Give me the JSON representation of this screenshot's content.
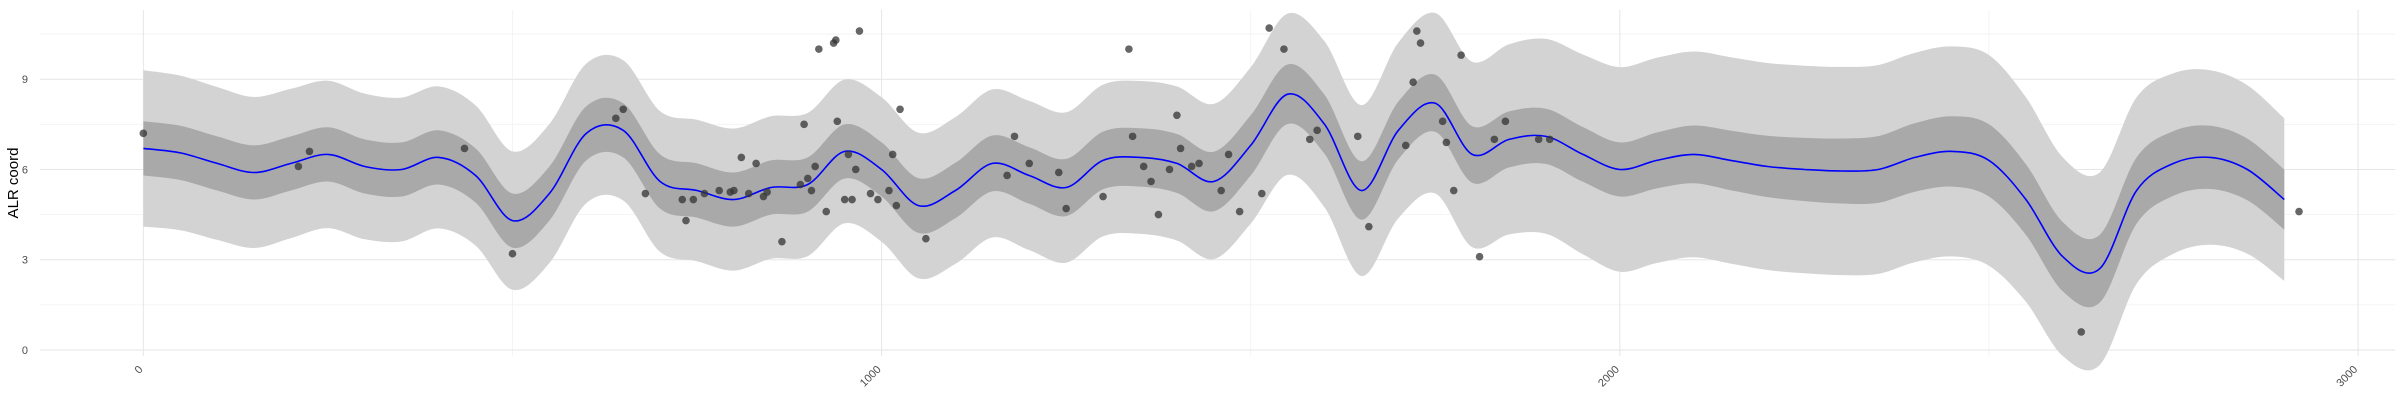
{
  "chart_data": {
    "type": "line",
    "title": "",
    "xlabel": "",
    "ylabel": "ALR coord",
    "xlim": [
      -140,
      3050
    ],
    "ylim": [
      -0.2,
      11.3
    ],
    "x_ticks": [
      0,
      1000,
      2000,
      3000
    ],
    "x_tick_labels": [
      "0",
      "1000",
      "2000",
      "3000"
    ],
    "y_ticks": [
      0,
      3,
      6,
      9
    ],
    "y_tick_labels": [
      "0",
      "3",
      "6",
      "9"
    ],
    "grid": true,
    "legend": "none",
    "colors": {
      "mean_line": "#0000ff",
      "inner_band": "#a9a9a9",
      "outer_band": "#d3d3d3",
      "points": "#333333",
      "grid_major": "#e6e6e6",
      "grid_minor": "#f2f2f2"
    },
    "series": [
      {
        "kind": "mean",
        "x": [
          0,
          50,
          100,
          150,
          200,
          250,
          300,
          350,
          400,
          450,
          500,
          550,
          600,
          650,
          700,
          750,
          800,
          850,
          900,
          950,
          1000,
          1050,
          1100,
          1150,
          1200,
          1250,
          1300,
          1350,
          1400,
          1450,
          1500,
          1550,
          1600,
          1650,
          1700,
          1750,
          1800,
          1850,
          1900,
          1950,
          2000,
          2050,
          2100,
          2150,
          2200,
          2250,
          2300,
          2350,
          2400,
          2450,
          2500,
          2550,
          2600,
          2650,
          2700,
          2750,
          2800,
          2850,
          2900
        ],
        "y": [
          6.7,
          6.55,
          6.2,
          5.9,
          6.2,
          6.5,
          6.1,
          6.0,
          6.4,
          5.8,
          4.3,
          5.2,
          7.2,
          7.3,
          5.6,
          5.3,
          5.0,
          5.4,
          5.5,
          6.6,
          6.0,
          4.8,
          5.3,
          6.2,
          5.8,
          5.4,
          6.3,
          6.4,
          6.2,
          5.6,
          6.8,
          8.5,
          7.5,
          5.3,
          7.3,
          8.2,
          6.5,
          7.0,
          7.1,
          6.5,
          6.0,
          6.3,
          6.5,
          6.3,
          6.1,
          6.0,
          5.95,
          6.0,
          6.4,
          6.6,
          6.3,
          5.0,
          3.1,
          2.7,
          5.3,
          6.2,
          6.4,
          6.0,
          5.0
        ]
      },
      {
        "kind": "inner_band_half_width",
        "x": [
          0,
          500,
          1000,
          1500,
          2000,
          2500,
          2900
        ],
        "y": [
          0.9,
          0.9,
          0.9,
          1.0,
          0.9,
          1.2,
          1.0
        ]
      },
      {
        "kind": "outer_band_half_width",
        "x": [
          0,
          500,
          1000,
          1500,
          2000,
          2500,
          2900
        ],
        "y": [
          2.6,
          2.3,
          2.4,
          2.6,
          3.4,
          3.5,
          2.7
        ]
      }
    ],
    "points": [
      {
        "x": 0,
        "y": 7.2
      },
      {
        "x": 210,
        "y": 6.1
      },
      {
        "x": 225,
        "y": 6.6
      },
      {
        "x": 435,
        "y": 6.7
      },
      {
        "x": 500,
        "y": 3.2
      },
      {
        "x": 640,
        "y": 7.7
      },
      {
        "x": 650,
        "y": 8.0
      },
      {
        "x": 680,
        "y": 5.2
      },
      {
        "x": 730,
        "y": 5.0
      },
      {
        "x": 735,
        "y": 4.3
      },
      {
        "x": 745,
        "y": 5.0
      },
      {
        "x": 760,
        "y": 5.2
      },
      {
        "x": 780,
        "y": 5.3
      },
      {
        "x": 795,
        "y": 5.25
      },
      {
        "x": 800,
        "y": 5.3
      },
      {
        "x": 810,
        "y": 6.4
      },
      {
        "x": 820,
        "y": 5.2
      },
      {
        "x": 830,
        "y": 6.2
      },
      {
        "x": 840,
        "y": 5.1
      },
      {
        "x": 845,
        "y": 5.25
      },
      {
        "x": 865,
        "y": 3.6
      },
      {
        "x": 890,
        "y": 5.5
      },
      {
        "x": 895,
        "y": 7.5
      },
      {
        "x": 900,
        "y": 5.7
      },
      {
        "x": 905,
        "y": 5.3
      },
      {
        "x": 910,
        "y": 6.1
      },
      {
        "x": 915,
        "y": 10.0
      },
      {
        "x": 925,
        "y": 4.6
      },
      {
        "x": 935,
        "y": 10.2
      },
      {
        "x": 938,
        "y": 10.3
      },
      {
        "x": 940,
        "y": 7.6
      },
      {
        "x": 950,
        "y": 5.0
      },
      {
        "x": 955,
        "y": 6.5
      },
      {
        "x": 960,
        "y": 5.0
      },
      {
        "x": 965,
        "y": 6.0
      },
      {
        "x": 970,
        "y": 10.6
      },
      {
        "x": 985,
        "y": 5.2
      },
      {
        "x": 995,
        "y": 5.0
      },
      {
        "x": 1010,
        "y": 5.3
      },
      {
        "x": 1015,
        "y": 6.5
      },
      {
        "x": 1020,
        "y": 4.8
      },
      {
        "x": 1025,
        "y": 8.0
      },
      {
        "x": 1060,
        "y": 3.7
      },
      {
        "x": 1170,
        "y": 5.8
      },
      {
        "x": 1180,
        "y": 7.1
      },
      {
        "x": 1200,
        "y": 6.2
      },
      {
        "x": 1240,
        "y": 5.9
      },
      {
        "x": 1250,
        "y": 4.7
      },
      {
        "x": 1300,
        "y": 5.1
      },
      {
        "x": 1335,
        "y": 10.0
      },
      {
        "x": 1340,
        "y": 7.1
      },
      {
        "x": 1355,
        "y": 6.1
      },
      {
        "x": 1365,
        "y": 5.6
      },
      {
        "x": 1375,
        "y": 4.5
      },
      {
        "x": 1390,
        "y": 6.0
      },
      {
        "x": 1400,
        "y": 7.8
      },
      {
        "x": 1405,
        "y": 6.7
      },
      {
        "x": 1420,
        "y": 6.1
      },
      {
        "x": 1430,
        "y": 6.2
      },
      {
        "x": 1460,
        "y": 5.3
      },
      {
        "x": 1470,
        "y": 6.5
      },
      {
        "x": 1485,
        "y": 4.6
      },
      {
        "x": 1515,
        "y": 5.2
      },
      {
        "x": 1525,
        "y": 10.7
      },
      {
        "x": 1545,
        "y": 10.0
      },
      {
        "x": 1580,
        "y": 7.0
      },
      {
        "x": 1590,
        "y": 7.3
      },
      {
        "x": 1645,
        "y": 7.1
      },
      {
        "x": 1660,
        "y": 4.1
      },
      {
        "x": 1710,
        "y": 6.8
      },
      {
        "x": 1720,
        "y": 8.9
      },
      {
        "x": 1725,
        "y": 10.6
      },
      {
        "x": 1730,
        "y": 10.2
      },
      {
        "x": 1760,
        "y": 7.6
      },
      {
        "x": 1765,
        "y": 6.9
      },
      {
        "x": 1775,
        "y": 5.3
      },
      {
        "x": 1785,
        "y": 9.8
      },
      {
        "x": 1810,
        "y": 3.1
      },
      {
        "x": 1830,
        "y": 7.0
      },
      {
        "x": 1845,
        "y": 7.6
      },
      {
        "x": 1890,
        "y": 7.0
      },
      {
        "x": 1905,
        "y": 7.0
      },
      {
        "x": 2625,
        "y": 0.6
      },
      {
        "x": 2920,
        "y": 4.6
      }
    ]
  }
}
